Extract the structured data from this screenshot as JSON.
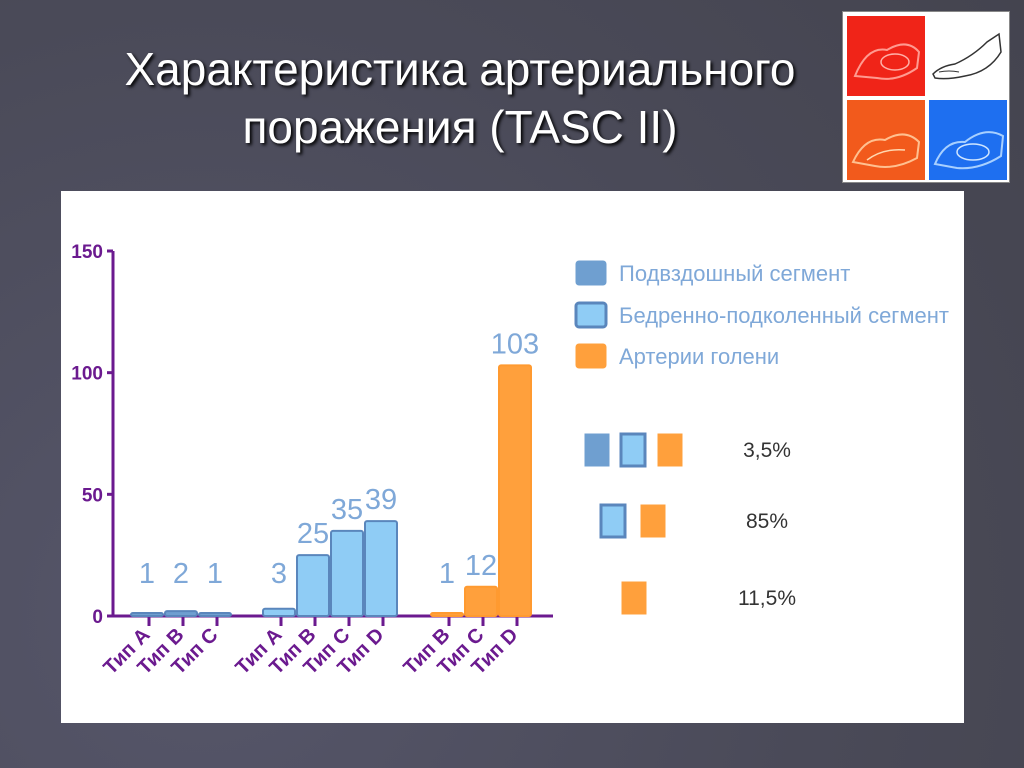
{
  "slide": {
    "title_line1": "Характеристика артериального",
    "title_line2": "поражения (TASC II)"
  },
  "colors": {
    "iliac": "#6f9fd0",
    "femoral": "#8fccf5",
    "tibial": "#ffa03c",
    "axis": "#6b1a8f",
    "value_label": "#7fa8d8"
  },
  "chart_data": {
    "type": "bar",
    "ylim": [
      0,
      150
    ],
    "yticks": [
      0,
      50,
      100,
      150
    ],
    "grid": false,
    "legend_position": "top-right",
    "series": [
      {
        "name": "Подвздошный сегмент",
        "categories": [
          "Тип A",
          "Тип B",
          "Тип C"
        ],
        "values": [
          1,
          2,
          1
        ]
      },
      {
        "name": "Бедренно-подколенный сегмент",
        "categories": [
          "Тип A",
          "Тип B",
          "Тип C",
          "Тип D"
        ],
        "values": [
          3,
          25,
          35,
          39
        ]
      },
      {
        "name": "Артерии голени",
        "categories": [
          "Тип B",
          "Тип C",
          "Тип D"
        ],
        "values": [
          1,
          12,
          103
        ]
      }
    ],
    "annotations": [
      {
        "series": [
          "Подвздошный сегмент",
          "Бедренно-подколенный сегмент",
          "Артерии голени"
        ],
        "text": "3,5%"
      },
      {
        "series": [
          "Бедренно-подколенный сегмент",
          "Артерии голени"
        ],
        "text": "85%"
      },
      {
        "series": [
          "Артерии голени"
        ],
        "text": "11,5%"
      }
    ]
  }
}
